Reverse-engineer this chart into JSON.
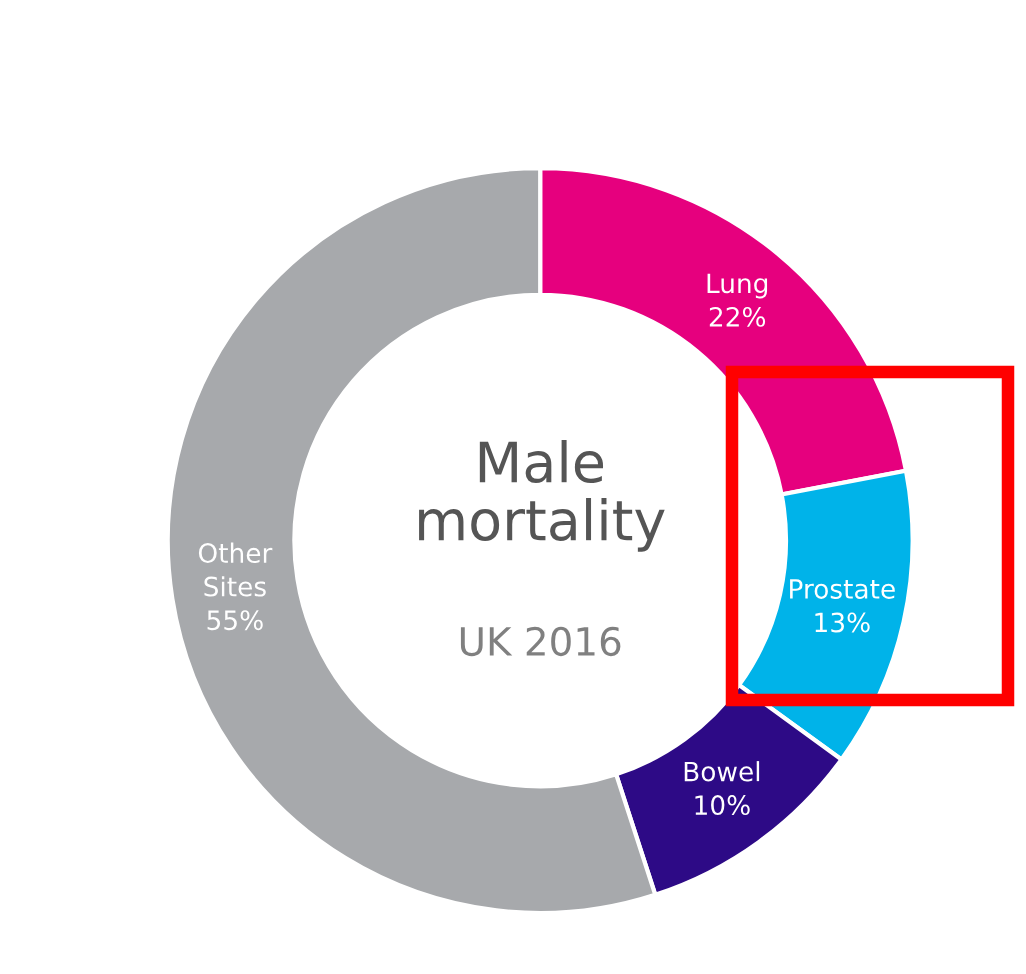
{
  "chart_data": {
    "type": "donut",
    "title": "Male\nmortality",
    "subtitle": "UK 2016",
    "categories": [
      "Lung",
      "Prostate",
      "Bowel",
      "Other\nSites"
    ],
    "values": [
      22,
      13,
      10,
      55
    ],
    "value_labels": [
      "22%",
      "13%",
      "10%",
      "55%"
    ],
    "colors": [
      "#e6007e",
      "#00b3e9",
      "#2d0a86",
      "#a7a9ac"
    ],
    "legend": false
  }
}
